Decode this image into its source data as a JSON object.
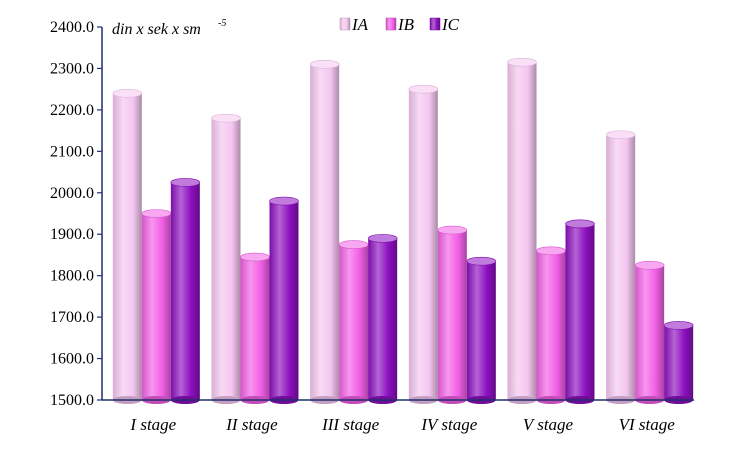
{
  "chart_data": {
    "type": "bar",
    "categories": [
      "I stage",
      "II stage",
      "III stage",
      "IV stage",
      "V stage",
      "VI stage"
    ],
    "series": [
      {
        "name": "IA",
        "color": "#f4c6f0",
        "values": [
          2240,
          2180,
          2310,
          2250,
          2315,
          2140
        ]
      },
      {
        "name": "IB",
        "color": "#f25fe6",
        "values": [
          1950,
          1845,
          1875,
          1910,
          1860,
          1825
        ]
      },
      {
        "name": "IC",
        "color": "#8c0fbf",
        "values": [
          2025,
          1980,
          1890,
          1835,
          1925,
          1680
        ]
      }
    ],
    "y_ticks": [
      "1500.0",
      "1600.0",
      "1700.0",
      "1800.0",
      "1900.0",
      "2000.0",
      "2100.0",
      "2200.0",
      "2300.0",
      "2400.0"
    ],
    "ylim": [
      1500,
      2400
    ],
    "unit_label": {
      "main": "din x sek x sm",
      "sup": "-5"
    },
    "legend_position": "top-center",
    "grid": false
  }
}
